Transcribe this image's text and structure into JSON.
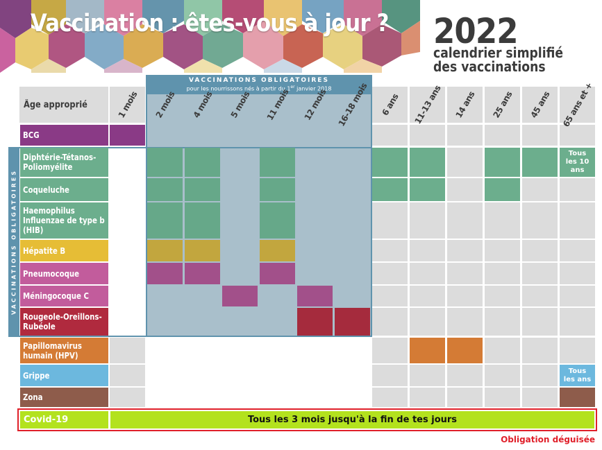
{
  "title": "Vaccination : êtes-vous à jour ?",
  "year": "2022",
  "subtitle_line1": "calendrier simplifié",
  "subtitle_line2": "des vaccinations",
  "mandatory_header": {
    "line1": "VACCINATIONS OBLIGATOIRES",
    "line2": "pour les nourrissons nés à partir du 1",
    "line2_sup": "er",
    "line2_end": " janvier 2018"
  },
  "side_label": "VACCINATIONS OBLIGATOIRES",
  "age_header_label": "Âge approprié",
  "ages": [
    "1 mois",
    "2 mois",
    "4 mois",
    "5 mois",
    "11 mois",
    "12 mois",
    "16-18 mois",
    "6 ans",
    "11-13 ans",
    "14 ans",
    "25 ans",
    "45 ans",
    "65 ans et +"
  ],
  "vaccines": [
    {
      "name_lines": [
        "BCG"
      ],
      "color": "#8a3a86"
    },
    {
      "name_lines": [
        "Diphtérie-Tétanos-",
        "Poliomyélite"
      ],
      "color": "#6cae8d"
    },
    {
      "name_lines": [
        "Coqueluche"
      ],
      "color": "#6cae8d"
    },
    {
      "name_lines": [
        "Haemophilus",
        "Influenzae de type b",
        "(HIB)"
      ],
      "color": "#6cae8d"
    },
    {
      "name_lines": [
        "Hépatite B"
      ],
      "color": "#e6bd36"
    },
    {
      "name_lines": [
        "Pneumocoque"
      ],
      "color": "#c25c9c"
    },
    {
      "name_lines": [
        "Méningocoque C"
      ],
      "color": "#c25c9c"
    },
    {
      "name_lines": [
        "Rougeole-Oreillons-",
        "Rubéole"
      ],
      "color": "#b02a3e"
    },
    {
      "name_lines": [
        "Papillomavirus",
        "humain (HPV)"
      ],
      "color": "#d47b35"
    },
    {
      "name_lines": [
        "Grippe"
      ],
      "color": "#6cb8de"
    },
    {
      "name_lines": [
        "Zona"
      ],
      "color": "#8e5c4b"
    }
  ],
  "schedule": {
    "BCG": [
      "1 mois"
    ],
    "Diphtérie-Tétanos-Poliomyélite": [
      "2 mois",
      "4 mois",
      "11 mois",
      "6 ans",
      "11-13 ans",
      "25 ans",
      "45 ans",
      "65 ans et +"
    ],
    "Coqueluche": [
      "2 mois",
      "4 mois",
      "11 mois",
      "6 ans",
      "11-13 ans",
      "25 ans"
    ],
    "Haemophilus Influenzae de type b (HIB)": [
      "2 mois",
      "4 mois",
      "11 mois"
    ],
    "Hépatite B": [
      "2 mois",
      "4 mois",
      "11 mois"
    ],
    "Pneumocoque": [
      "2 mois",
      "4 mois",
      "11 mois"
    ],
    "Méningocoque C": [
      "5 mois",
      "12 mois"
    ],
    "Rougeole-Oreillons-Rubéole": [
      "12 mois",
      "16-18 mois"
    ],
    "Papillomavirus humain (HPV)": [
      "11-13 ans",
      "14 ans"
    ],
    "Grippe": [
      "65 ans et +"
    ],
    "Zona": [
      "65 ans et +"
    ]
  },
  "notes": {
    "dtp": [
      "Tous",
      "les 10 ans"
    ],
    "grippe": [
      "Tous",
      "les ans"
    ]
  },
  "covid": {
    "label": "Covid-19",
    "text": "Tous les 3 mois jusqu'à la fin de tes jours",
    "color": "#b3e21e"
  },
  "disguised_obligation": "Obligation déguisée",
  "colors": {
    "mandatory_blue": "#5f93ad",
    "mandatory_fill": "#a9bfcb",
    "empty_cell": "#dcdcdc",
    "alert_red": "#e0202a"
  }
}
